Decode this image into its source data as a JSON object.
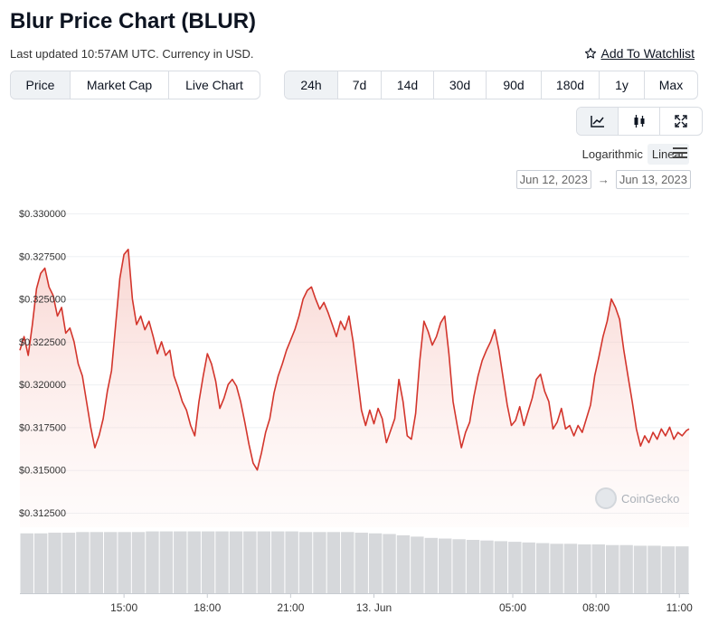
{
  "header": {
    "title": "Blur Price Chart (BLUR)",
    "subtitle": "Last updated 10:57AM UTC. Currency in USD.",
    "watchlist_label": "Add To Watchlist"
  },
  "tabs": [
    {
      "label": "Price",
      "active": true
    },
    {
      "label": "Market Cap",
      "active": false
    },
    {
      "label": "Live Chart",
      "active": false
    }
  ],
  "ranges": [
    {
      "label": "24h",
      "active": true
    },
    {
      "label": "7d",
      "active": false
    },
    {
      "label": "14d",
      "active": false
    },
    {
      "label": "30d",
      "active": false
    },
    {
      "label": "90d",
      "active": false
    },
    {
      "label": "180d",
      "active": false
    },
    {
      "label": "1y",
      "active": false
    },
    {
      "label": "Max",
      "active": false
    }
  ],
  "tools": [
    {
      "icon": "line-chart-icon",
      "active": true
    },
    {
      "icon": "candlestick-icon",
      "active": false
    },
    {
      "icon": "fullscreen-icon",
      "active": false
    }
  ],
  "scale": {
    "logarithmic": "Logarithmic",
    "linear": "Linear",
    "selected": "linear"
  },
  "date_range": {
    "from": "Jun 12, 2023",
    "arrow": "→",
    "to": "Jun 13, 2023"
  },
  "watermark": "CoinGecko",
  "colors": {
    "line": "#d3352c",
    "fill": "#fbe4e1",
    "volume": "#d6d8db",
    "grid": "#eef0f3"
  },
  "chart_data": {
    "type": "line",
    "y_axis": {
      "ticks": [
        "$0.330000",
        "$0.327500",
        "$0.325000",
        "$0.322500",
        "$0.320000",
        "$0.317500",
        "$0.315000",
        "$0.312500"
      ],
      "range": [
        0.3125,
        0.33
      ]
    },
    "x_axis": {
      "ticks": [
        "15:00",
        "18:00",
        "21:00",
        "13. Jun",
        "05:00",
        "08:00",
        "11:00"
      ],
      "tick_hours": [
        15,
        18,
        21,
        24,
        29,
        32,
        35
      ],
      "range_hours": [
        11.25,
        35.35
      ]
    },
    "series": [
      {
        "values": [
          [
            11.25,
            0.322
          ],
          [
            11.4,
            0.3228
          ],
          [
            11.55,
            0.3217
          ],
          [
            11.7,
            0.3235
          ],
          [
            11.85,
            0.3256
          ],
          [
            12.0,
            0.3265
          ],
          [
            12.15,
            0.3268
          ],
          [
            12.3,
            0.3257
          ],
          [
            12.45,
            0.3252
          ],
          [
            12.6,
            0.324
          ],
          [
            12.75,
            0.3245
          ],
          [
            12.9,
            0.323
          ],
          [
            13.05,
            0.3233
          ],
          [
            13.2,
            0.3225
          ],
          [
            13.35,
            0.3212
          ],
          [
            13.5,
            0.3205
          ],
          [
            13.65,
            0.319
          ],
          [
            13.8,
            0.3175
          ],
          [
            13.95,
            0.3163
          ],
          [
            14.1,
            0.317
          ],
          [
            14.25,
            0.318
          ],
          [
            14.4,
            0.3196
          ],
          [
            14.55,
            0.3208
          ],
          [
            14.7,
            0.3235
          ],
          [
            14.85,
            0.3262
          ],
          [
            15.0,
            0.3276
          ],
          [
            15.15,
            0.3279
          ],
          [
            15.3,
            0.325
          ],
          [
            15.45,
            0.3235
          ],
          [
            15.6,
            0.324
          ],
          [
            15.75,
            0.3232
          ],
          [
            15.9,
            0.3237
          ],
          [
            16.05,
            0.3228
          ],
          [
            16.2,
            0.3218
          ],
          [
            16.35,
            0.3225
          ],
          [
            16.5,
            0.3217
          ],
          [
            16.65,
            0.322
          ],
          [
            16.8,
            0.3205
          ],
          [
            16.95,
            0.3198
          ],
          [
            17.1,
            0.319
          ],
          [
            17.25,
            0.3185
          ],
          [
            17.4,
            0.3176
          ],
          [
            17.55,
            0.317
          ],
          [
            17.7,
            0.319
          ],
          [
            17.85,
            0.3205
          ],
          [
            18.0,
            0.3218
          ],
          [
            18.15,
            0.3212
          ],
          [
            18.3,
            0.3202
          ],
          [
            18.45,
            0.3186
          ],
          [
            18.6,
            0.3192
          ],
          [
            18.75,
            0.32
          ],
          [
            18.9,
            0.3203
          ],
          [
            19.05,
            0.3199
          ],
          [
            19.2,
            0.319
          ],
          [
            19.35,
            0.3178
          ],
          [
            19.5,
            0.3165
          ],
          [
            19.65,
            0.3154
          ],
          [
            19.8,
            0.315
          ],
          [
            19.95,
            0.316
          ],
          [
            20.1,
            0.3172
          ],
          [
            20.25,
            0.318
          ],
          [
            20.4,
            0.3195
          ],
          [
            20.55,
            0.3205
          ],
          [
            20.7,
            0.3212
          ],
          [
            20.85,
            0.322
          ],
          [
            21.0,
            0.3226
          ],
          [
            21.15,
            0.3232
          ],
          [
            21.3,
            0.324
          ],
          [
            21.45,
            0.325
          ],
          [
            21.6,
            0.3255
          ],
          [
            21.75,
            0.3257
          ],
          [
            21.9,
            0.325
          ],
          [
            22.05,
            0.3244
          ],
          [
            22.2,
            0.3248
          ],
          [
            22.35,
            0.3242
          ],
          [
            22.5,
            0.3235
          ],
          [
            22.65,
            0.3228
          ],
          [
            22.8,
            0.3237
          ],
          [
            22.95,
            0.3232
          ],
          [
            23.1,
            0.324
          ],
          [
            23.25,
            0.3225
          ],
          [
            23.4,
            0.3205
          ],
          [
            23.55,
            0.3185
          ],
          [
            23.7,
            0.3176
          ],
          [
            23.85,
            0.3185
          ],
          [
            24.0,
            0.3177
          ],
          [
            24.15,
            0.3186
          ],
          [
            24.3,
            0.318
          ],
          [
            24.45,
            0.3166
          ],
          [
            24.6,
            0.3173
          ],
          [
            24.75,
            0.318
          ],
          [
            24.9,
            0.3203
          ],
          [
            25.05,
            0.319
          ],
          [
            25.2,
            0.317
          ],
          [
            25.35,
            0.3168
          ],
          [
            25.5,
            0.3183
          ],
          [
            25.65,
            0.3214
          ],
          [
            25.8,
            0.3237
          ],
          [
            25.95,
            0.3231
          ],
          [
            26.1,
            0.3223
          ],
          [
            26.25,
            0.3228
          ],
          [
            26.4,
            0.3236
          ],
          [
            26.55,
            0.324
          ],
          [
            26.7,
            0.3218
          ],
          [
            26.85,
            0.319
          ],
          [
            27.0,
            0.3176
          ],
          [
            27.15,
            0.3163
          ],
          [
            27.3,
            0.3172
          ],
          [
            27.45,
            0.3178
          ],
          [
            27.6,
            0.3193
          ],
          [
            27.75,
            0.3205
          ],
          [
            27.9,
            0.3214
          ],
          [
            28.05,
            0.322
          ],
          [
            28.2,
            0.3225
          ],
          [
            28.35,
            0.3232
          ],
          [
            28.5,
            0.322
          ],
          [
            28.65,
            0.3204
          ],
          [
            28.8,
            0.3188
          ],
          [
            28.95,
            0.3176
          ],
          [
            29.1,
            0.3179
          ],
          [
            29.25,
            0.3187
          ],
          [
            29.4,
            0.3176
          ],
          [
            29.55,
            0.3184
          ],
          [
            29.7,
            0.3192
          ],
          [
            29.85,
            0.3203
          ],
          [
            30.0,
            0.3206
          ],
          [
            30.15,
            0.3196
          ],
          [
            30.3,
            0.319
          ],
          [
            30.45,
            0.3174
          ],
          [
            30.6,
            0.3178
          ],
          [
            30.75,
            0.3186
          ],
          [
            30.9,
            0.3174
          ],
          [
            31.05,
            0.3176
          ],
          [
            31.2,
            0.317
          ],
          [
            31.35,
            0.3176
          ],
          [
            31.5,
            0.3172
          ],
          [
            31.65,
            0.318
          ],
          [
            31.8,
            0.3188
          ],
          [
            31.95,
            0.3205
          ],
          [
            32.1,
            0.3216
          ],
          [
            32.25,
            0.3228
          ],
          [
            32.4,
            0.3237
          ],
          [
            32.55,
            0.325
          ],
          [
            32.7,
            0.3245
          ],
          [
            32.85,
            0.3238
          ],
          [
            33.0,
            0.322
          ],
          [
            33.15,
            0.3205
          ],
          [
            33.3,
            0.319
          ],
          [
            33.45,
            0.3174
          ],
          [
            33.6,
            0.3164
          ],
          [
            33.75,
            0.317
          ],
          [
            33.9,
            0.3166
          ],
          [
            34.05,
            0.3172
          ],
          [
            34.2,
            0.3168
          ],
          [
            34.35,
            0.3174
          ],
          [
            34.5,
            0.317
          ],
          [
            34.65,
            0.3175
          ],
          [
            34.8,
            0.3168
          ],
          [
            34.95,
            0.3172
          ],
          [
            35.1,
            0.317
          ],
          [
            35.25,
            0.3173
          ],
          [
            35.35,
            0.3174
          ]
        ]
      }
    ],
    "volume": {
      "x_range_hours": [
        11.25,
        35.35
      ],
      "relative_values": [
        0.92,
        0.92,
        0.93,
        0.93,
        0.94,
        0.94,
        0.94,
        0.94,
        0.94,
        0.95,
        0.95,
        0.95,
        0.95,
        0.95,
        0.95,
        0.95,
        0.95,
        0.95,
        0.95,
        0.95,
        0.94,
        0.94,
        0.94,
        0.94,
        0.93,
        0.92,
        0.91,
        0.89,
        0.87,
        0.85,
        0.84,
        0.83,
        0.82,
        0.81,
        0.8,
        0.79,
        0.78,
        0.77,
        0.76,
        0.76,
        0.75,
        0.75,
        0.74,
        0.74,
        0.73,
        0.73,
        0.72,
        0.72
      ],
      "ylim": [
        0,
        1
      ]
    },
    "grid": true,
    "legend": "none"
  }
}
